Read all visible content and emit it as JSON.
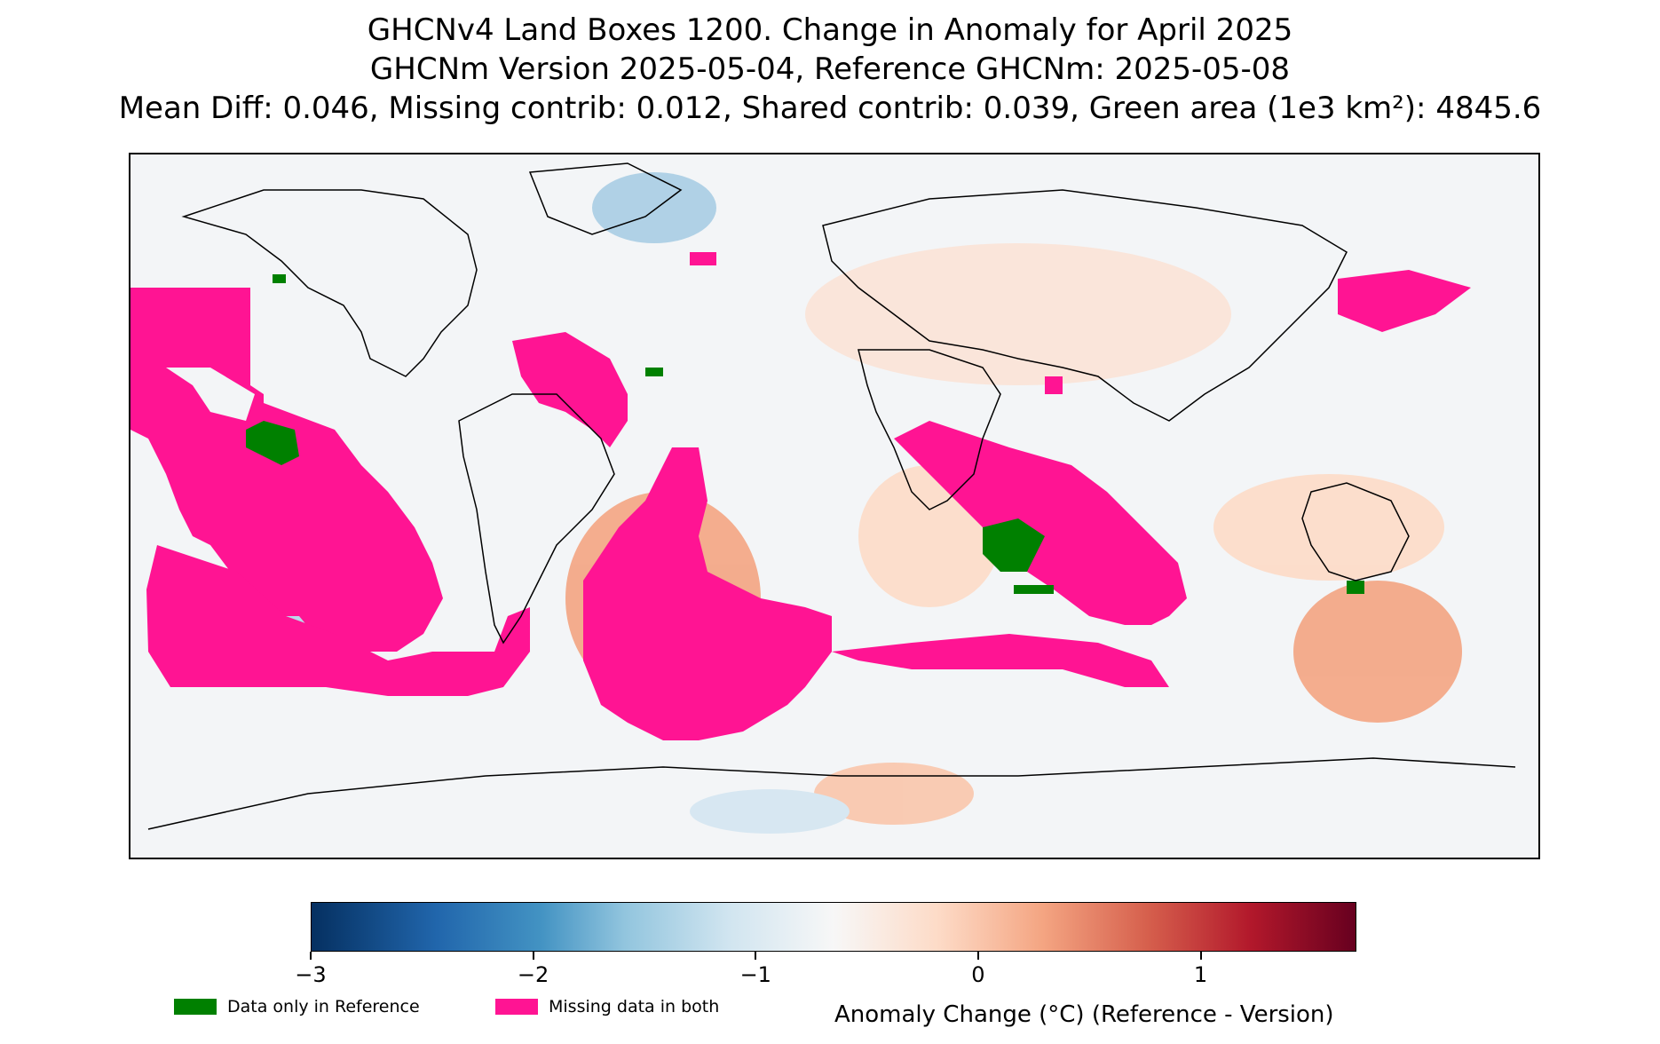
{
  "title": {
    "line1": "GHCNv4 Land Boxes 1200. Change in Anomaly for April 2025",
    "line2": "GHCNm Version 2025-05-04, Reference GHCNm: 2025-05-08",
    "line3": "Mean Diff: 0.046, Missing contrib: 0.012, Shared contrib: 0.039, Green area (1e3 km²): 4845.6"
  },
  "map": {
    "projection": "equirectangular",
    "extent": {
      "lon": [
        -180,
        180
      ],
      "lat": [
        -90,
        90
      ]
    },
    "coastline_color": "#000000",
    "background_color": "#f3f5f7",
    "category_colors": {
      "data_only_in_reference": "#008000",
      "missing_in_both": "#ff1493"
    }
  },
  "colorbar": {
    "colormap": "RdBu_r",
    "vmin": -3,
    "vmax": 1.7,
    "ticks": [
      {
        "value": -3,
        "label": "−3"
      },
      {
        "value": -2,
        "label": "−2"
      },
      {
        "value": -1,
        "label": "−1"
      },
      {
        "value": 0,
        "label": "0"
      },
      {
        "value": 1,
        "label": "1"
      }
    ],
    "label": "Anomaly Change (°C) (Reference - Version)"
  },
  "legend": [
    {
      "label": "Data only in Reference",
      "color": "#008000"
    },
    {
      "label": "Missing data in both",
      "color": "#ff1493"
    }
  ]
}
